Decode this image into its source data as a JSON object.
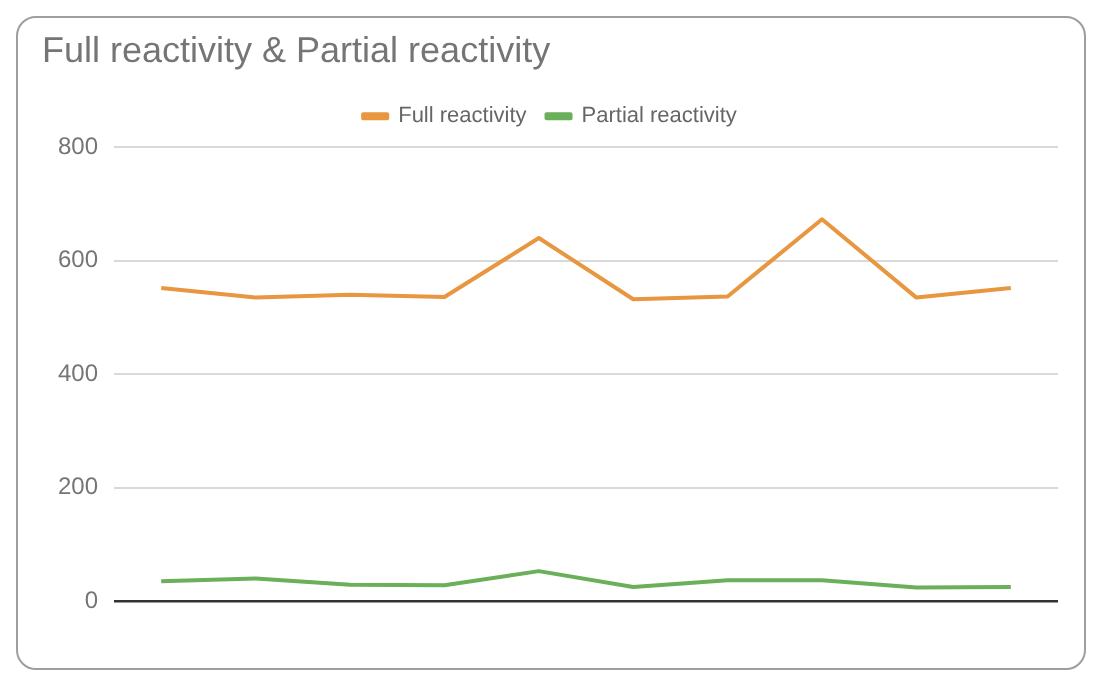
{
  "chart_data": {
    "type": "line",
    "title": "Full reactivity & Partial reactivity",
    "categories": [
      null,
      null,
      null,
      null,
      null,
      null,
      null,
      null,
      null,
      null
    ],
    "series": [
      {
        "name": "Full reactivity",
        "color": "#e8963f",
        "values": [
          552,
          535,
          540,
          536,
          640,
          532,
          537,
          673,
          535,
          552
        ]
      },
      {
        "name": "Partial reactivity",
        "color": "#6aaf5a",
        "values": [
          35,
          40,
          29,
          28,
          53,
          25,
          37,
          37,
          24,
          25
        ]
      }
    ],
    "ylim": [
      0,
      800
    ],
    "yticks": [
      0,
      200,
      400,
      600,
      800
    ],
    "grid": "y",
    "legend": "top",
    "marker": "none",
    "line_style": "solid"
  }
}
